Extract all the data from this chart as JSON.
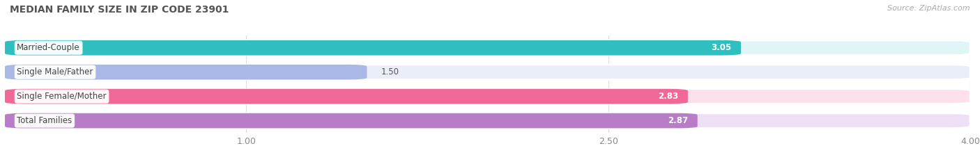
{
  "title": "MEDIAN FAMILY SIZE IN ZIP CODE 23901",
  "source": "Source: ZipAtlas.com",
  "categories": [
    "Married-Couple",
    "Single Male/Father",
    "Single Female/Mother",
    "Total Families"
  ],
  "values": [
    3.05,
    1.5,
    2.83,
    2.87
  ],
  "bar_colors": [
    "#30bfbf",
    "#aab8e8",
    "#f06898",
    "#b87cc8"
  ],
  "bar_bg_colors": [
    "#e0f5f5",
    "#eaeef8",
    "#fde0ec",
    "#ede0f5"
  ],
  "value_label_colors": [
    "#ffffff",
    "#777777",
    "#ffffff",
    "#ffffff"
  ],
  "xmin": 1.0,
  "xmax": 4.0,
  "xticks": [
    1.0,
    2.5,
    4.0
  ],
  "xtick_labels": [
    "1.00",
    "2.50",
    "4.00"
  ],
  "bar_height": 0.62,
  "bar_gap": 0.38,
  "fig_width": 14.06,
  "fig_height": 2.33,
  "dpi": 100,
  "title_fontsize": 10,
  "label_fontsize": 8.5,
  "tick_fontsize": 9,
  "value_fontsize": 8.5,
  "source_fontsize": 8,
  "bg_color": "#ffffff"
}
